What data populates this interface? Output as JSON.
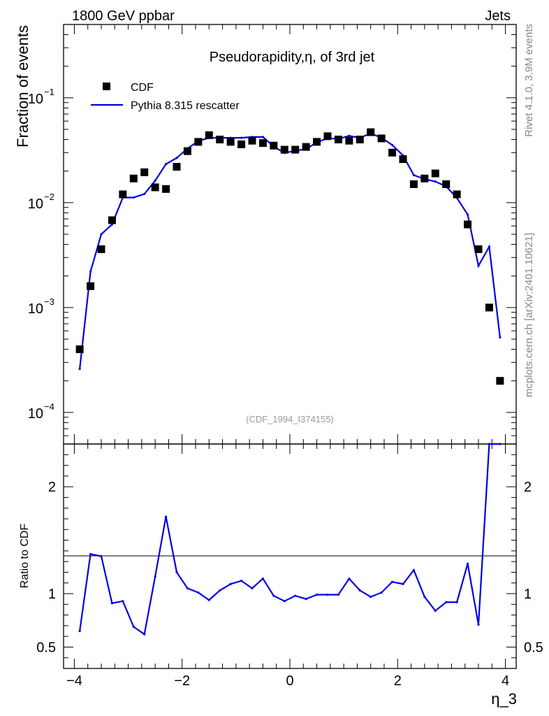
{
  "chart_data": {
    "type": "line",
    "header_left": "1800 GeV ppbar",
    "header_right": "Jets",
    "title": "Pseudorapidity,η, of 3rd jet",
    "ylabel": "Fraction of events",
    "ratio_ylabel": "Ratio to CDF",
    "xlabel": "η_3",
    "analysis_id": "(CDF_1994_I374155)",
    "side_label_top": "Rivet 4.1.0,  3.9M events",
    "side_label_bottom": "mcplots.cern.ch [arXiv:2401.10621]",
    "xlim": [
      -4.2,
      4.2
    ],
    "ylim_log": [
      5e-05,
      0.5
    ],
    "ratio_ylim": [
      0.3,
      2.4
    ],
    "x_ticks": [
      "−4",
      "−2",
      "0",
      "2",
      "4"
    ],
    "y_ticks": [
      {
        "mant": "10",
        "exp": "−1",
        "value": 0.1
      },
      {
        "mant": "10",
        "exp": "−2",
        "value": 0.01
      },
      {
        "mant": "10",
        "exp": "−3",
        "value": 0.001
      },
      {
        "mant": "10",
        "exp": "−4",
        "value": 0.0001
      }
    ],
    "ratio_y_ticks": [
      {
        "label": "2",
        "value": 2
      },
      {
        "label": "1",
        "value": 1
      },
      {
        "label": "0.5",
        "value": 0.5
      }
    ],
    "legend": {
      "data": "CDF",
      "mc": "Pythia 8.315 rescatter"
    },
    "colors": {
      "mc": "#0000e6",
      "data": "#000000"
    },
    "cdf": {
      "x": [
        -3.9,
        -3.7,
        -3.5,
        -3.3,
        -3.1,
        -2.9,
        -2.7,
        -2.5,
        -2.3,
        -2.1,
        -1.9,
        -1.7,
        -1.5,
        -1.3,
        -1.1,
        -0.9,
        -0.7,
        -0.5,
        -0.3,
        -0.1,
        0.1,
        0.3,
        0.5,
        0.7,
        0.9,
        1.1,
        1.3,
        1.5,
        1.7,
        1.9,
        2.1,
        2.3,
        2.5,
        2.7,
        2.9,
        3.1,
        3.3,
        3.5,
        3.7,
        3.9
      ],
      "y": [
        0.0004,
        0.0016,
        0.0036,
        0.0068,
        0.012,
        0.017,
        0.0195,
        0.014,
        0.0135,
        0.022,
        0.031,
        0.038,
        0.044,
        0.04,
        0.038,
        0.036,
        0.039,
        0.037,
        0.035,
        0.032,
        0.032,
        0.034,
        0.038,
        0.043,
        0.04,
        0.039,
        0.04,
        0.047,
        0.041,
        0.03,
        0.026,
        0.015,
        0.017,
        0.019,
        0.015,
        0.012,
        0.0062,
        0.0036,
        0.001,
        0.0002
      ]
    },
    "pythia": {
      "x": [
        -3.9,
        -3.7,
        -3.5,
        -3.3,
        -3.1,
        -2.9,
        -2.7,
        -2.5,
        -2.3,
        -2.1,
        -1.9,
        -1.7,
        -1.5,
        -1.3,
        -1.1,
        -0.9,
        -0.7,
        -0.5,
        -0.3,
        -0.1,
        0.1,
        0.3,
        0.5,
        0.7,
        0.9,
        1.1,
        1.3,
        1.5,
        1.7,
        1.9,
        2.1,
        2.3,
        2.5,
        2.7,
        2.9,
        3.1,
        3.3,
        3.5,
        3.7,
        3.9
      ],
      "y": [
        0.00026,
        0.0022,
        0.005,
        0.0062,
        0.0112,
        0.0112,
        0.0121,
        0.0162,
        0.0233,
        0.0267,
        0.0328,
        0.0387,
        0.0415,
        0.0415,
        0.0415,
        0.0415,
        0.0423,
        0.0423,
        0.0343,
        0.0298,
        0.0312,
        0.0325,
        0.0375,
        0.0413,
        0.0405,
        0.0434,
        0.0415,
        0.0458,
        0.0415,
        0.0355,
        0.0282,
        0.0183,
        0.0168,
        0.0159,
        0.0143,
        0.0111,
        0.0077,
        0.0025,
        0.0038,
        0.00052
      ]
    },
    "ratio": {
      "x": [
        -3.9,
        -3.7,
        -3.5,
        -3.3,
        -3.1,
        -2.9,
        -2.7,
        -2.5,
        -2.3,
        -2.1,
        -1.9,
        -1.7,
        -1.5,
        -1.3,
        -1.1,
        -0.9,
        -0.7,
        -0.5,
        -0.3,
        -0.1,
        0.1,
        0.3,
        0.5,
        0.7,
        0.9,
        1.1,
        1.3,
        1.5,
        1.7,
        1.9,
        2.1,
        2.3,
        2.5,
        2.7,
        2.9,
        3.1,
        3.3,
        3.5,
        3.7,
        3.9
      ],
      "y": [
        0.65,
        1.37,
        1.35,
        0.91,
        0.93,
        0.69,
        0.62,
        1.16,
        1.72,
        1.2,
        1.05,
        1.01,
        0.94,
        1.03,
        1.09,
        1.12,
        1.05,
        1.14,
        0.98,
        0.93,
        0.98,
        0.95,
        0.99,
        0.99,
        0.99,
        1.14,
        1.03,
        0.97,
        1.01,
        1.11,
        1.09,
        1.22,
        0.97,
        0.84,
        0.92,
        0.92,
        1.28,
        0.71,
        2.4,
        2.4
      ]
    }
  }
}
